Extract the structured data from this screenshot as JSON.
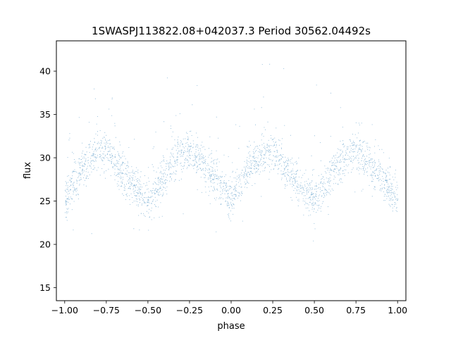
{
  "chart_data": {
    "type": "scatter",
    "title": "1SWASPJ113822.08+042037.3 Period 30562.04492s",
    "xlabel": "phase",
    "ylabel": "flux",
    "xlim": [
      -1.05,
      1.05
    ],
    "ylim": [
      13.5,
      43.5
    ],
    "xticks": [
      -1.0,
      -0.75,
      -0.5,
      -0.25,
      0.0,
      0.25,
      0.5,
      0.75,
      1.0
    ],
    "xtick_labels": [
      "−1.00",
      "−0.75",
      "−0.50",
      "−0.25",
      "0.00",
      "0.25",
      "0.50",
      "0.75",
      "1.00"
    ],
    "yticks": [
      15,
      20,
      25,
      30,
      35,
      40
    ],
    "ytick_labels": [
      "15",
      "20",
      "25",
      "30",
      "35",
      "40"
    ],
    "grid": false,
    "marker_color": "#1f77b4",
    "series": [
      {
        "x": [
          -1.0,
          -0.9,
          -0.8,
          -0.75,
          -0.7,
          -0.6,
          -0.5,
          -0.4,
          -0.3,
          -0.25,
          -0.2,
          -0.1,
          0.0,
          0.1,
          0.2,
          0.25,
          0.3,
          0.4,
          0.5,
          0.6,
          0.7,
          0.75,
          0.8,
          0.9,
          1.0
        ],
        "y": [
          25.2,
          28.8,
          31.0,
          30.8,
          29.5,
          27.0,
          25.0,
          27.8,
          30.5,
          30.8,
          30.0,
          27.8,
          25.2,
          28.8,
          31.0,
          30.8,
          29.5,
          27.0,
          25.0,
          27.8,
          30.5,
          30.8,
          30.0,
          27.8,
          25.2
        ]
      }
    ]
  }
}
